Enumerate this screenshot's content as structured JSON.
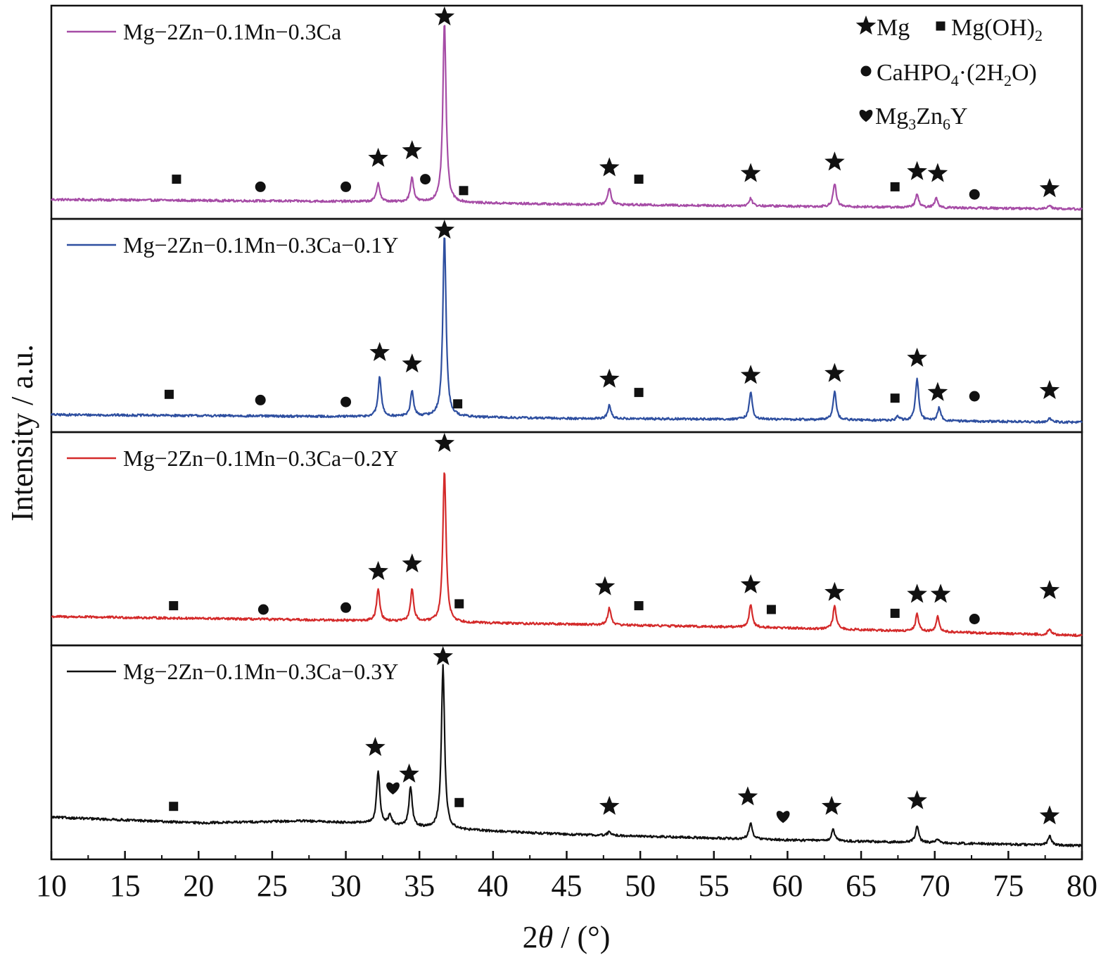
{
  "chart_data": {
    "type": "line",
    "xlabel": "2θ / (°)",
    "ylabel": "Intensity / a.u.",
    "xlim": [
      10,
      80
    ],
    "x_ticks": [
      10,
      15,
      20,
      25,
      30,
      35,
      40,
      45,
      50,
      55,
      60,
      65,
      70,
      75,
      80
    ],
    "grid": false,
    "layout": "four stacked panels sharing the 2θ axis, top to bottom",
    "legend": {
      "placement": "top-right",
      "phases": [
        {
          "symbol": "star",
          "label": "Mg"
        },
        {
          "symbol": "square",
          "label": "Mg(OH)",
          "sub": "2"
        },
        {
          "symbol": "circle",
          "label": "CaHPO",
          "sub": "4",
          "mid": "·(2H",
          "sub2": "2",
          "tail": "O)"
        },
        {
          "symbol": "heart",
          "label": "Mg",
          "sub": "3",
          "mid": "Zn",
          "sub2": "6",
          "tail": "Y"
        }
      ]
    },
    "series": [
      {
        "name": "Mg−2Zn−0.1Mn−0.3Ca",
        "color": "#a64ca6",
        "baseline": [
          [
            10,
            0.05
          ],
          [
            30,
            0.04
          ],
          [
            36,
            0.035
          ],
          [
            45,
            0.025
          ],
          [
            60,
            0.015
          ],
          [
            80,
            0.0
          ]
        ],
        "peaks": [
          [
            32.2,
            0.1
          ],
          [
            34.5,
            0.13
          ],
          [
            36.7,
            0.95
          ],
          [
            47.9,
            0.09
          ],
          [
            57.5,
            0.04
          ],
          [
            63.2,
            0.12
          ],
          [
            68.8,
            0.07
          ],
          [
            70.1,
            0.05
          ],
          [
            77.8,
            0.02
          ]
        ],
        "markers": [
          {
            "symbol": "square",
            "x": 18.5,
            "y": 0.12
          },
          {
            "symbol": "circle",
            "x": 24.2,
            "y": 0.08
          },
          {
            "symbol": "circle",
            "x": 30.0,
            "y": 0.08
          },
          {
            "symbol": "star",
            "x": 32.2,
            "y": 0.23
          },
          {
            "symbol": "star",
            "x": 34.5,
            "y": 0.27
          },
          {
            "symbol": "circle",
            "x": 35.4,
            "y": 0.12
          },
          {
            "symbol": "star",
            "x": 36.7,
            "y": 1.08
          },
          {
            "symbol": "square",
            "x": 38.0,
            "y": 0.06
          },
          {
            "symbol": "star",
            "x": 47.9,
            "y": 0.18
          },
          {
            "symbol": "square",
            "x": 49.9,
            "y": 0.12
          },
          {
            "symbol": "star",
            "x": 57.5,
            "y": 0.15
          },
          {
            "symbol": "star",
            "x": 63.2,
            "y": 0.21
          },
          {
            "symbol": "square",
            "x": 67.3,
            "y": 0.08
          },
          {
            "symbol": "star",
            "x": 68.8,
            "y": 0.16
          },
          {
            "symbol": "star",
            "x": 70.2,
            "y": 0.15
          },
          {
            "symbol": "circle",
            "x": 72.7,
            "y": 0.04
          },
          {
            "symbol": "star",
            "x": 77.8,
            "y": 0.07
          }
        ]
      },
      {
        "name": "Mg−2Zn−0.1Mn−0.3Ca−0.1Y",
        "color": "#2e4fa0",
        "baseline": [
          [
            10,
            0.04
          ],
          [
            30,
            0.03
          ],
          [
            36,
            0.03
          ],
          [
            45,
            0.02
          ],
          [
            60,
            0.015
          ],
          [
            80,
            0.0
          ]
        ],
        "peaks": [
          [
            32.3,
            0.21
          ],
          [
            34.5,
            0.13
          ],
          [
            36.7,
            0.96
          ],
          [
            47.9,
            0.07
          ],
          [
            57.5,
            0.14
          ],
          [
            63.2,
            0.15
          ],
          [
            67.5,
            0.02
          ],
          [
            68.8,
            0.22
          ],
          [
            70.3,
            0.07
          ],
          [
            77.8,
            0.02
          ]
        ],
        "markers": [
          {
            "symbol": "square",
            "x": 18.0,
            "y": 0.11
          },
          {
            "symbol": "circle",
            "x": 24.2,
            "y": 0.08
          },
          {
            "symbol": "circle",
            "x": 30.0,
            "y": 0.07
          },
          {
            "symbol": "star",
            "x": 32.3,
            "y": 0.33
          },
          {
            "symbol": "star",
            "x": 34.5,
            "y": 0.27
          },
          {
            "symbol": "star",
            "x": 36.7,
            "y": 1.08
          },
          {
            "symbol": "square",
            "x": 37.6,
            "y": 0.06
          },
          {
            "symbol": "star",
            "x": 47.9,
            "y": 0.19
          },
          {
            "symbol": "square",
            "x": 49.9,
            "y": 0.12
          },
          {
            "symbol": "star",
            "x": 57.5,
            "y": 0.21
          },
          {
            "symbol": "star",
            "x": 63.2,
            "y": 0.22
          },
          {
            "symbol": "square",
            "x": 67.3,
            "y": 0.09
          },
          {
            "symbol": "star",
            "x": 68.8,
            "y": 0.3
          },
          {
            "symbol": "star",
            "x": 70.2,
            "y": 0.12
          },
          {
            "symbol": "circle",
            "x": 72.7,
            "y": 0.1
          },
          {
            "symbol": "star",
            "x": 77.8,
            "y": 0.13
          }
        ]
      },
      {
        "name": "Mg−2Zn−0.1Mn−0.3Ca−0.2Y",
        "color": "#d42a2a",
        "baseline": [
          [
            10,
            0.1
          ],
          [
            30,
            0.08
          ],
          [
            36,
            0.07
          ],
          [
            45,
            0.06
          ],
          [
            60,
            0.04
          ],
          [
            80,
            0.0
          ]
        ],
        "peaks": [
          [
            32.2,
            0.17
          ],
          [
            34.5,
            0.17
          ],
          [
            36.7,
            0.8
          ],
          [
            47.9,
            0.09
          ],
          [
            57.5,
            0.12
          ],
          [
            63.2,
            0.12
          ],
          [
            68.8,
            0.09
          ],
          [
            70.2,
            0.08
          ],
          [
            77.8,
            0.03
          ]
        ],
        "markers": [
          {
            "symbol": "square",
            "x": 18.3,
            "y": 0.12
          },
          {
            "symbol": "circle",
            "x": 24.4,
            "y": 0.1
          },
          {
            "symbol": "circle",
            "x": 30.0,
            "y": 0.11
          },
          {
            "symbol": "star",
            "x": 32.2,
            "y": 0.3
          },
          {
            "symbol": "star",
            "x": 34.5,
            "y": 0.34
          },
          {
            "symbol": "star",
            "x": 36.7,
            "y": 1.08
          },
          {
            "symbol": "square",
            "x": 37.7,
            "y": 0.13
          },
          {
            "symbol": "star",
            "x": 47.6,
            "y": 0.22
          },
          {
            "symbol": "square",
            "x": 49.9,
            "y": 0.12
          },
          {
            "symbol": "star",
            "x": 57.5,
            "y": 0.23
          },
          {
            "symbol": "square",
            "x": 58.9,
            "y": 0.1
          },
          {
            "symbol": "star",
            "x": 63.2,
            "y": 0.19
          },
          {
            "symbol": "square",
            "x": 67.3,
            "y": 0.08
          },
          {
            "symbol": "star",
            "x": 68.8,
            "y": 0.18
          },
          {
            "symbol": "star",
            "x": 70.4,
            "y": 0.18
          },
          {
            "symbol": "circle",
            "x": 72.7,
            "y": 0.05
          },
          {
            "symbol": "star",
            "x": 77.8,
            "y": 0.2
          }
        ]
      },
      {
        "name": "Mg−2Zn−0.1Mn−0.3Ca−0.3Y",
        "color": "#111111",
        "baseline": [
          [
            10,
            0.17
          ],
          [
            20,
            0.14
          ],
          [
            27,
            0.15
          ],
          [
            31,
            0.14
          ],
          [
            36,
            0.11
          ],
          [
            45,
            0.08
          ],
          [
            60,
            0.05
          ],
          [
            80,
            0.02
          ]
        ],
        "peaks": [
          [
            32.2,
            0.28
          ],
          [
            33.0,
            0.05
          ],
          [
            34.4,
            0.21
          ],
          [
            36.6,
            0.86
          ],
          [
            47.9,
            0.02
          ],
          [
            57.5,
            0.09
          ],
          [
            63.1,
            0.06
          ],
          [
            68.8,
            0.09
          ],
          [
            70.2,
            0.02
          ],
          [
            77.8,
            0.05
          ]
        ],
        "markers": [
          {
            "symbol": "square",
            "x": 18.3,
            "y": 0.19
          },
          {
            "symbol": "star",
            "x": 32.0,
            "y": 0.5
          },
          {
            "symbol": "heart",
            "x": 33.2,
            "y": 0.29
          },
          {
            "symbol": "star",
            "x": 34.3,
            "y": 0.36
          },
          {
            "symbol": "star",
            "x": 36.6,
            "y": 1.0
          },
          {
            "symbol": "square",
            "x": 37.7,
            "y": 0.21
          },
          {
            "symbol": "star",
            "x": 47.9,
            "y": 0.19
          },
          {
            "symbol": "star",
            "x": 57.3,
            "y": 0.24
          },
          {
            "symbol": "heart",
            "x": 59.7,
            "y": 0.14
          },
          {
            "symbol": "star",
            "x": 63.0,
            "y": 0.19
          },
          {
            "symbol": "star",
            "x": 68.8,
            "y": 0.22
          },
          {
            "symbol": "star",
            "x": 77.8,
            "y": 0.14
          }
        ]
      }
    ]
  }
}
